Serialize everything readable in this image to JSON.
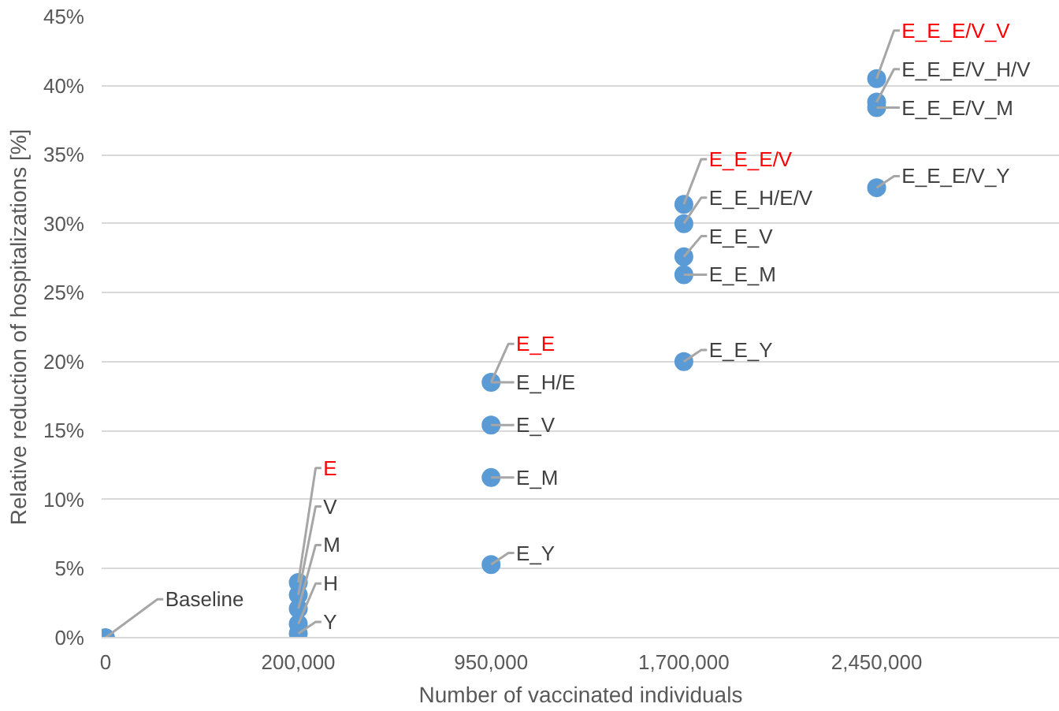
{
  "chart_data": {
    "type": "scatter",
    "xlabel": "Number of vaccinated individuals",
    "ylabel": "Relative reduction of hospitalizations [%]",
    "categories": [
      "0",
      "200,000",
      "950,000",
      "1,700,000",
      "2,450,000"
    ],
    "series": [
      {
        "color": "#5b9bd5",
        "x": [
          "0",
          "200,000",
          "200,000",
          "200,000",
          "200,000",
          "200,000",
          "950,000",
          "950,000",
          "950,000",
          "950,000",
          "950,000",
          "1,700,000",
          "1,700,000",
          "1,700,000",
          "1,700,000",
          "1,700,000",
          "2,450,000",
          "2,450,000",
          "2,450,000",
          "2,450,000"
        ],
        "values": [
          0,
          4.0,
          3.1,
          2.1,
          1.0,
          0.3,
          null,
          18.5,
          15.4,
          11.6,
          5.3,
          31.4,
          30.0,
          27.6,
          26.3,
          20.0,
          40.5,
          38.8,
          38.4,
          32.6
        ]
      }
    ],
    "annotations": [
      {
        "text": "Baseline",
        "x": "0",
        "y": 0
      },
      {
        "text": "E",
        "x": "200,000",
        "y": 4.0
      },
      {
        "text": "V",
        "x": "200,000",
        "y": 3.1
      },
      {
        "text": "M",
        "x": "200,000",
        "y": 2.1
      },
      {
        "text": "H",
        "x": "200,000",
        "y": 1.0
      },
      {
        "text": "Y",
        "x": "200,000",
        "y": 0.3
      },
      {
        "text": "E_E",
        "x": "950,000",
        "y": 18.5
      },
      {
        "text": "E_H/E",
        "x": "950,000",
        "y": 18.5
      },
      {
        "text": "E_V",
        "x": "950,000",
        "y": 15.4
      },
      {
        "text": "E_M",
        "x": "950,000",
        "y": 11.6
      },
      {
        "text": "E_Y",
        "x": "950,000",
        "y": 5.3
      },
      {
        "text": "E_E_E/V",
        "x": "1,700,000",
        "y": 31.4
      },
      {
        "text": "E_E_H/E/V",
        "x": "1,700,000",
        "y": 30.0
      },
      {
        "text": "E_E_V",
        "x": "1,700,000",
        "y": 27.6
      },
      {
        "text": "E_E_M",
        "x": "1,700,000",
        "y": 26.3
      },
      {
        "text": "E_E_Y",
        "x": "1,700,000",
        "y": 20.0
      },
      {
        "text": "E_E_E/V_V",
        "x": "2,450,000",
        "y": 40.5
      },
      {
        "text": "E_E_E/V_H/V",
        "x": "2,450,000",
        "y": 38.8
      },
      {
        "text": "E_E_E/V_M",
        "x": "2,450,000",
        "y": 38.4
      },
      {
        "text": "E_E_E/V_Y",
        "x": "2,450,000",
        "y": 32.6
      }
    ],
    "ylim": [
      0,
      45
    ],
    "yticks": [
      {
        "value": 0,
        "label": "0%"
      },
      {
        "value": 5,
        "label": "5%"
      },
      {
        "value": 10,
        "label": "10%"
      },
      {
        "value": 15,
        "label": "15%"
      },
      {
        "value": 20,
        "label": "20%"
      },
      {
        "value": 25,
        "label": "25%"
      },
      {
        "value": 30,
        "label": "30%"
      },
      {
        "value": 35,
        "label": "35%"
      },
      {
        "value": 40,
        "label": "40%"
      },
      {
        "value": 45,
        "label": "45%"
      }
    ],
    "grid": "y",
    "marker": "circle"
  }
}
